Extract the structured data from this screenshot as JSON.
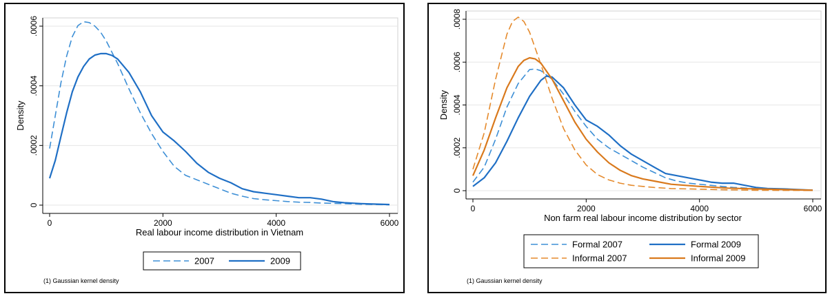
{
  "chart_data": [
    {
      "type": "line",
      "xlabel": "Real labour income distribution in Vietnam",
      "ylabel": "Density",
      "xlim": [
        0,
        6000
      ],
      "ylim": [
        0,
        0.0006
      ],
      "xticks": [
        0,
        2000,
        4000,
        6000
      ],
      "xtick_labels": [
        "0",
        "2000",
        "4000",
        "6000"
      ],
      "yticks": [
        0,
        0.0002,
        0.0004,
        0.0006
      ],
      "ytick_labels": [
        "0",
        ".0002",
        ".0004",
        ".0006"
      ],
      "grid": true,
      "legend_position": "bottom",
      "note": "(1) Gaussian kernel density",
      "series": [
        {
          "name": "2007",
          "color": "#3d8fd6",
          "dash": "dashed",
          "x": [
            0,
            100,
            200,
            300,
            400,
            500,
            600,
            700,
            800,
            900,
            1000,
            1200,
            1400,
            1600,
            1800,
            2000,
            2200,
            2400,
            2600,
            2800,
            3000,
            3200,
            3400,
            3600,
            3800,
            4000,
            4200,
            4400,
            4600,
            4800,
            5000,
            5200,
            5500,
            6000
          ],
          "y": [
            0.00019,
            0.0003,
            0.00041,
            0.0005,
            0.000565,
            0.000602,
            0.000615,
            0.000612,
            0.0006,
            0.00058,
            0.00055,
            0.000475,
            0.00039,
            0.00031,
            0.00024,
            0.00018,
            0.00013,
            0.0001,
            8.5e-05,
            7e-05,
            5.5e-05,
            4e-05,
            3e-05,
            2.2e-05,
            1.8e-05,
            1.5e-05,
            1.2e-05,
            1e-05,
            9e-06,
            7e-06,
            6e-06,
            5e-06,
            3e-06,
            1e-06
          ]
        },
        {
          "name": "2009",
          "color": "#1f6fc5",
          "dash": "solid",
          "x": [
            0,
            100,
            200,
            300,
            400,
            500,
            600,
            700,
            800,
            900,
            1000,
            1100,
            1200,
            1400,
            1600,
            1800,
            2000,
            2200,
            2400,
            2600,
            2800,
            3000,
            3200,
            3400,
            3600,
            3800,
            4000,
            4200,
            4400,
            4600,
            4800,
            5000,
            5200,
            5500,
            6000
          ],
          "y": [
            9e-05,
            0.00015,
            0.00023,
            0.00031,
            0.00038,
            0.00043,
            0.000465,
            0.00049,
            0.000503,
            0.000508,
            0.000508,
            0.000502,
            0.00049,
            0.000445,
            0.00038,
            0.0003,
            0.000245,
            0.000215,
            0.00018,
            0.00014,
            0.00011,
            9e-05,
            7.5e-05,
            5.5e-05,
            4.5e-05,
            4e-05,
            3.5e-05,
            3e-05,
            2.5e-05,
            2.5e-05,
            2e-05,
            1.2e-05,
            8e-06,
            5e-06,
            2e-06
          ]
        }
      ]
    },
    {
      "type": "line",
      "xlabel": "Non farm real labour income distribution by sector",
      "ylabel": "Density",
      "xlim": [
        0,
        6000
      ],
      "ylim": [
        0,
        0.0008
      ],
      "xticks": [
        0,
        2000,
        4000,
        6000
      ],
      "xtick_labels": [
        "0",
        "2000",
        "4000",
        "6000"
      ],
      "yticks": [
        0,
        0.0002,
        0.0004,
        0.0006,
        0.0008
      ],
      "ytick_labels": [
        "0",
        ".0002",
        ".0004",
        ".0006",
        ".0008"
      ],
      "grid": true,
      "legend_position": "bottom",
      "note": "(1) Gaussian kernel density",
      "series": [
        {
          "name": "Formal 2007",
          "color": "#3d8fd6",
          "dash": "dashed",
          "x": [
            0,
            200,
            400,
            600,
            800,
            1000,
            1100,
            1200,
            1400,
            1600,
            1800,
            2000,
            2200,
            2400,
            2600,
            2800,
            3000,
            3200,
            3400,
            3600,
            3800,
            4000,
            4200,
            4400,
            4600,
            5000,
            5500,
            6000
          ],
          "y": [
            4e-05,
            0.00011,
            0.00024,
            0.00039,
            0.0005,
            0.000565,
            0.000568,
            0.00056,
            0.00052,
            0.00045,
            0.00037,
            0.0003,
            0.00024,
            0.0002,
            0.00017,
            0.00014,
            0.00011,
            8.5e-05,
            6e-05,
            4.5e-05,
            3.5e-05,
            3e-05,
            2.5e-05,
            2e-05,
            1.5e-05,
            1e-05,
            5e-06,
            2e-06
          ]
        },
        {
          "name": "Formal 2009",
          "color": "#1f6fc5",
          "dash": "solid",
          "x": [
            0,
            200,
            400,
            600,
            800,
            1000,
            1200,
            1300,
            1400,
            1600,
            1800,
            2000,
            2200,
            2400,
            2600,
            2800,
            3000,
            3200,
            3400,
            3600,
            3800,
            4000,
            4200,
            4400,
            4600,
            4800,
            5000,
            5200,
            5500,
            6000
          ],
          "y": [
            2e-05,
            6e-05,
            0.00013,
            0.00023,
            0.00034,
            0.00044,
            0.000515,
            0.000535,
            0.00053,
            0.00048,
            0.0004,
            0.00033,
            0.0003,
            0.00026,
            0.00021,
            0.00017,
            0.00014,
            0.00011,
            8e-05,
            7e-05,
            6e-05,
            5e-05,
            4e-05,
            3.5e-05,
            3.5e-05,
            2.5e-05,
            1.5e-05,
            1e-05,
            8e-06,
            2e-06
          ]
        },
        {
          "name": "Informal 2007",
          "color": "#e58a2c",
          "dash": "dashed",
          "x": [
            0,
            200,
            400,
            600,
            700,
            800,
            900,
            1000,
            1200,
            1400,
            1600,
            1800,
            2000,
            2200,
            2400,
            2600,
            2800,
            3000,
            3200,
            3500,
            4000,
            4500,
            5000,
            6000
          ],
          "y": [
            0.0001,
            0.00027,
            0.00052,
            0.00073,
            0.00079,
            0.00081,
            0.00079,
            0.00074,
            0.00059,
            0.00043,
            0.00029,
            0.00019,
            0.00012,
            7.5e-05,
            5e-05,
            3.5e-05,
            2.5e-05,
            2e-05,
            1.5e-05,
            1e-05,
            7e-06,
            4e-06,
            2e-06,
            1e-06
          ]
        },
        {
          "name": "Informal 2009",
          "color": "#d9791c",
          "dash": "solid",
          "x": [
            0,
            200,
            400,
            600,
            800,
            900,
            1000,
            1100,
            1200,
            1400,
            1600,
            1800,
            2000,
            2200,
            2400,
            2600,
            2800,
            3000,
            3200,
            3500,
            4000,
            4500,
            5000,
            5500,
            6000
          ],
          "y": [
            7e-05,
            0.00019,
            0.00034,
            0.00048,
            0.00058,
            0.000608,
            0.00062,
            0.000615,
            0.000595,
            0.00052,
            0.00042,
            0.00032,
            0.00024,
            0.00018,
            0.00013,
            9.5e-05,
            7e-05,
            5.5e-05,
            4.5e-05,
            3e-05,
            2e-05,
            1.2e-05,
            8e-06,
            5e-06,
            2e-06
          ]
        }
      ]
    }
  ]
}
